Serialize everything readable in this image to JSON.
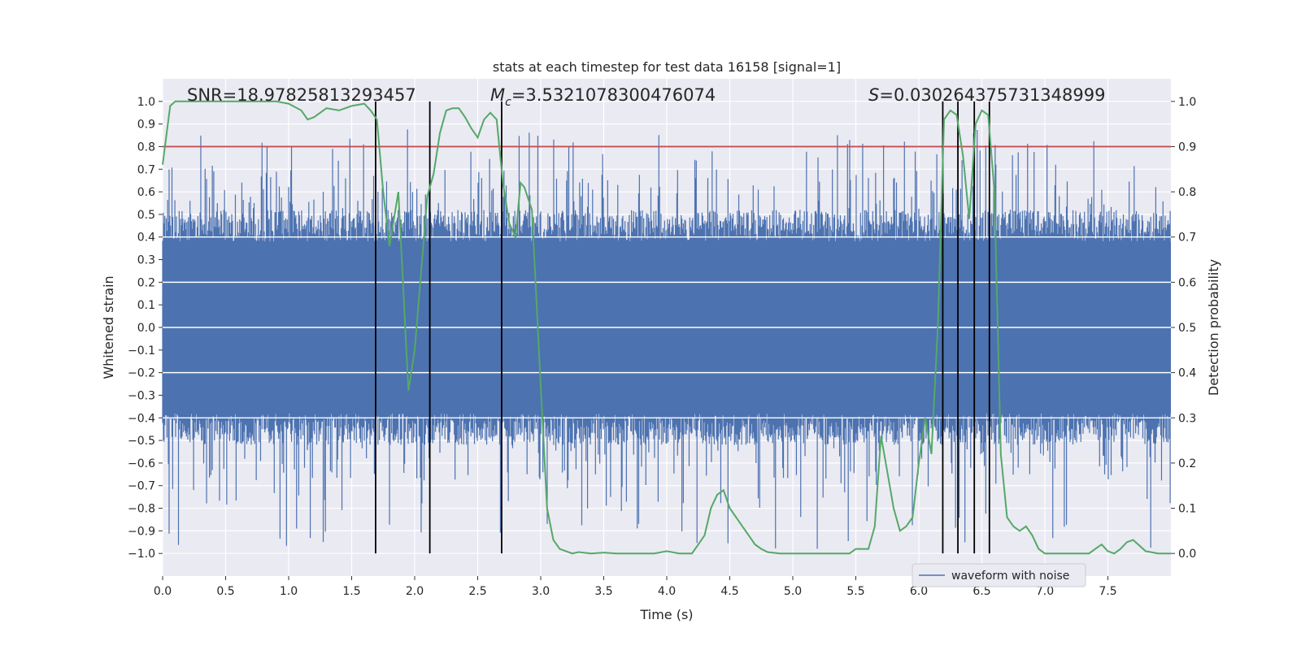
{
  "chart_data": {
    "type": "line",
    "title": "stats at each timestep for test data 16158 [signal=1]",
    "xlabel": "Time (s)",
    "ylabel": "Whitened strain",
    "y2label": "Detection probability",
    "xlim": [
      0.0,
      8.0
    ],
    "ylim": [
      -1.1,
      1.1
    ],
    "y2lim": [
      -0.05,
      1.05
    ],
    "xticks": [
      0.0,
      0.5,
      1.0,
      1.5,
      2.0,
      2.5,
      3.0,
      3.5,
      4.0,
      4.5,
      5.0,
      5.5,
      6.0,
      6.5,
      7.0,
      7.5
    ],
    "xtick_labels": [
      "0.0",
      "0.5",
      "1.0",
      "1.5",
      "2.0",
      "2.5",
      "3.0",
      "3.5",
      "4.0",
      "4.5",
      "5.0",
      "5.5",
      "6.0",
      "6.5",
      "7.0",
      "7.5"
    ],
    "yticks": [
      -1.0,
      -0.9,
      -0.8,
      -0.7,
      -0.6,
      -0.5,
      -0.4,
      -0.3,
      -0.2,
      -0.1,
      0.0,
      0.1,
      0.2,
      0.3,
      0.4,
      0.5,
      0.6,
      0.7,
      0.8,
      0.9,
      1.0
    ],
    "ytick_labels": [
      "−1.0",
      "−0.9",
      "−0.8",
      "−0.7",
      "−0.6",
      "−0.5",
      "−0.4",
      "−0.3",
      "−0.2",
      "−0.1",
      "0.0",
      "0.1",
      "0.2",
      "0.3",
      "0.4",
      "0.5",
      "0.6",
      "0.7",
      "0.8",
      "0.9",
      "1.0"
    ],
    "y2ticks": [
      0.0,
      0.1,
      0.2,
      0.3,
      0.4,
      0.5,
      0.6,
      0.7,
      0.8,
      0.9,
      1.0
    ],
    "y2tick_labels": [
      "0.0",
      "0.1",
      "0.2",
      "0.3",
      "0.4",
      "0.5",
      "0.6",
      "0.7",
      "0.8",
      "0.9",
      "1.0"
    ],
    "annotations": {
      "snr": "SNR=18.97825813293457",
      "mc_symbol": "M",
      "mc_subscript": "c",
      "mc_value": "=3.5321078300476074",
      "s_symbol": "S",
      "s_value": "=0.030264375731348999"
    },
    "legend": {
      "label": "waveform with noise",
      "position": "lower-right"
    },
    "threshold": {
      "value": 0.9,
      "axis": "right"
    },
    "vertical_lines": [
      1.69,
      2.12,
      2.69,
      6.19,
      6.31,
      6.44,
      6.56
    ],
    "vline_range": [
      -1.0,
      1.0
    ],
    "waveform": {
      "name": "waveform with noise",
      "envelope_notes": "dense noisy strain, core band roughly -0.4 to 0.4, spikes reaching about 0.9 / -1.0",
      "duration_s": 8.0
    },
    "detection_probability": {
      "name": "detection probability",
      "x": [
        0.0,
        0.06,
        0.1,
        0.2,
        0.3,
        0.5,
        0.7,
        0.9,
        1.0,
        1.1,
        1.15,
        1.2,
        1.3,
        1.4,
        1.5,
        1.6,
        1.65,
        1.7,
        1.75,
        1.8,
        1.87,
        1.95,
        2.0,
        2.05,
        2.1,
        2.15,
        2.2,
        2.25,
        2.3,
        2.35,
        2.4,
        2.45,
        2.5,
        2.55,
        2.6,
        2.65,
        2.7,
        2.75,
        2.8,
        2.84,
        2.87,
        2.93,
        3.0,
        3.05,
        3.1,
        3.15,
        3.2,
        3.25,
        3.3,
        3.4,
        3.5,
        3.6,
        3.7,
        3.8,
        3.9,
        4.0,
        4.1,
        4.2,
        4.25,
        4.3,
        4.35,
        4.4,
        4.45,
        4.5,
        4.55,
        4.6,
        4.65,
        4.7,
        4.75,
        4.8,
        4.9,
        5.0,
        5.1,
        5.2,
        5.3,
        5.4,
        5.45,
        5.5,
        5.6,
        5.65,
        5.7,
        5.75,
        5.8,
        5.85,
        5.9,
        5.95,
        6.0,
        6.05,
        6.1,
        6.15,
        6.2,
        6.25,
        6.3,
        6.35,
        6.4,
        6.45,
        6.5,
        6.55,
        6.6,
        6.65,
        6.7,
        6.75,
        6.8,
        6.85,
        6.9,
        6.95,
        7.0,
        7.1,
        7.2,
        7.3,
        7.35,
        7.4,
        7.45,
        7.5,
        7.55,
        7.6,
        7.65,
        7.7,
        7.8,
        7.9,
        8.0
      ],
      "y": [
        0.86,
        0.99,
        1.0,
        1.0,
        1.0,
        1.0,
        1.0,
        1.0,
        0.995,
        0.98,
        0.96,
        0.965,
        0.985,
        0.98,
        0.99,
        0.995,
        0.98,
        0.96,
        0.8,
        0.68,
        0.8,
        0.36,
        0.45,
        0.62,
        0.79,
        0.84,
        0.93,
        0.98,
        0.985,
        0.985,
        0.965,
        0.94,
        0.92,
        0.96,
        0.975,
        0.96,
        0.82,
        0.73,
        0.7,
        0.82,
        0.81,
        0.76,
        0.37,
        0.1,
        0.03,
        0.01,
        0.005,
        0.0,
        0.003,
        0.0,
        0.002,
        0.0,
        0.0,
        0.0,
        0.0,
        0.005,
        0.0,
        0.0,
        0.02,
        0.04,
        0.1,
        0.13,
        0.14,
        0.1,
        0.08,
        0.06,
        0.04,
        0.02,
        0.01,
        0.003,
        0.0,
        0.0,
        0.0,
        0.0,
        0.0,
        0.0,
        0.0,
        0.01,
        0.01,
        0.06,
        0.26,
        0.18,
        0.1,
        0.05,
        0.06,
        0.08,
        0.2,
        0.3,
        0.22,
        0.5,
        0.96,
        0.98,
        0.97,
        0.88,
        0.74,
        0.95,
        0.98,
        0.97,
        0.8,
        0.22,
        0.08,
        0.06,
        0.05,
        0.06,
        0.04,
        0.01,
        0.0,
        0.0,
        0.0,
        0.0,
        0.0,
        0.01,
        0.02,
        0.005,
        0.0,
        0.01,
        0.025,
        0.03,
        0.005,
        0.0,
        0.0
      ]
    },
    "colors": {
      "waveform": "#4c72b0",
      "probability": "#55a868",
      "threshold": "#c44e52",
      "vlines": "#000000",
      "background": "#eaeaf2",
      "grid": "#ffffff",
      "legend_bg": "#eaeaf2",
      "legend_border": "#cccccc"
    }
  }
}
